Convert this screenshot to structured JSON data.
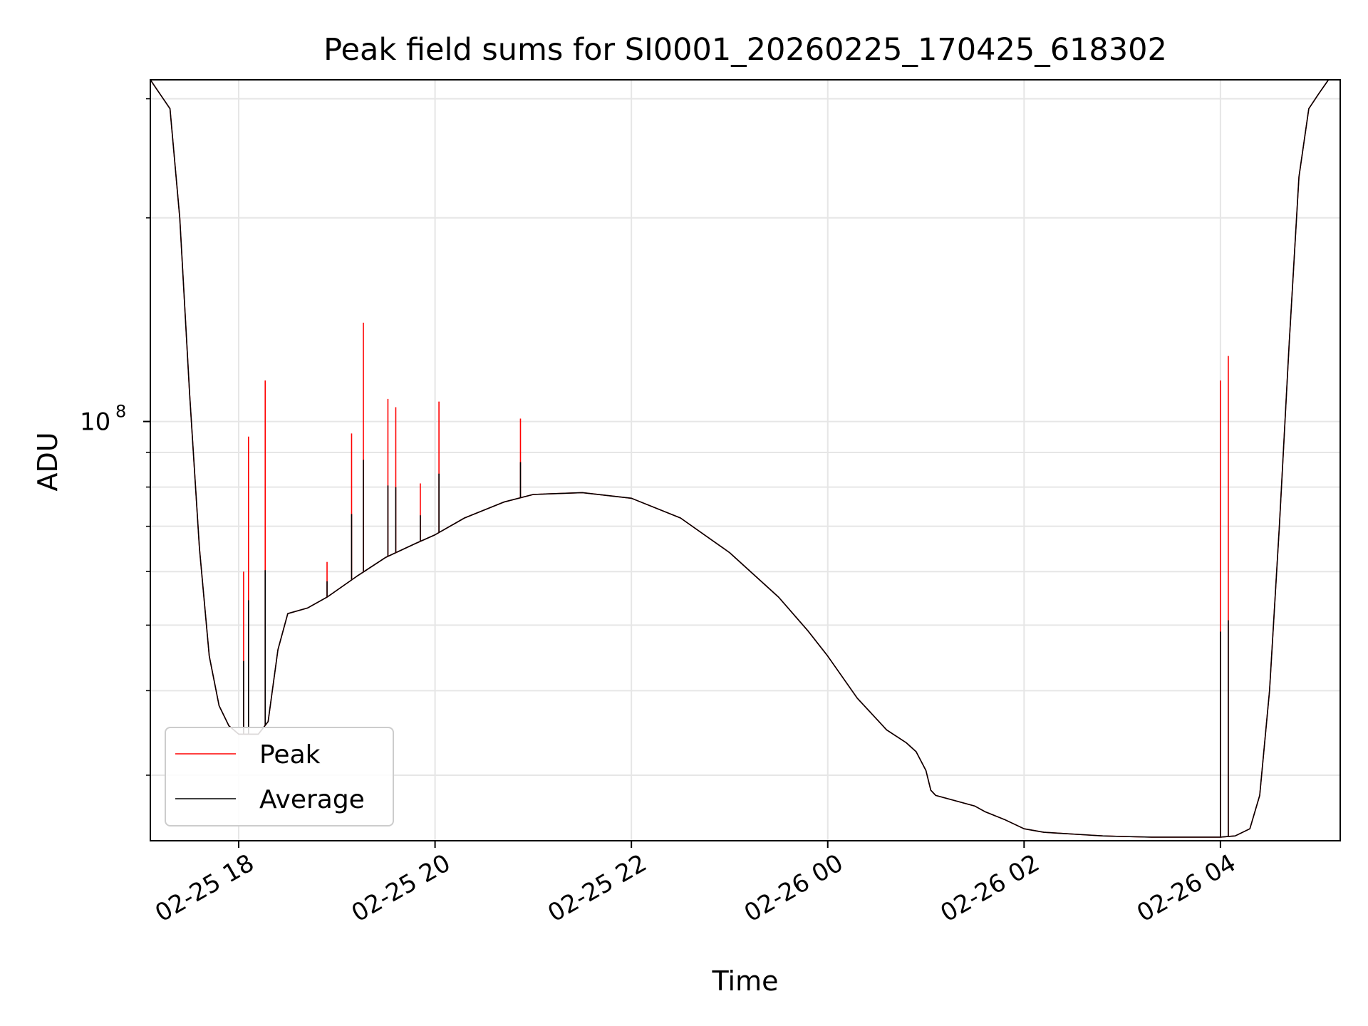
{
  "chart_data": {
    "type": "line",
    "title": "Peak field sums for SI0001_20260225_170425_618302",
    "xlabel": "Time",
    "ylabel": "ADU",
    "yscale": "log",
    "ylim": [
      24000000,
      320000000
    ],
    "xlim": [
      -0.9,
      11.22
    ],
    "grid": true,
    "legend_location": "lower-left",
    "x_unit": "hours since 02-25 18:00",
    "x_ticks": [
      {
        "value": 0,
        "label": "02-25 18"
      },
      {
        "value": 2,
        "label": "02-25 20"
      },
      {
        "value": 4,
        "label": "02-25 22"
      },
      {
        "value": 6,
        "label": "02-26 00"
      },
      {
        "value": 8,
        "label": "02-26 02"
      },
      {
        "value": 10,
        "label": "02-26 04"
      }
    ],
    "y_major_ticks": [
      {
        "value": 100000000,
        "base": "10",
        "exponent": "8"
      }
    ],
    "y_minor_ticks": [
      30000000,
      40000000,
      50000000,
      60000000,
      70000000,
      80000000,
      90000000,
      200000000,
      300000000
    ],
    "legend": [
      {
        "name": "Peak",
        "color": "#ff0000"
      },
      {
        "name": "Average",
        "color": "#000000"
      }
    ],
    "series": [
      {
        "name": "Average",
        "color": "#000000",
        "x": [
          -0.9,
          -0.7,
          -0.6,
          -0.5,
          -0.4,
          -0.3,
          -0.2,
          -0.1,
          0.0,
          0.2,
          0.3,
          0.4,
          0.5,
          0.7,
          0.9,
          1.2,
          1.5,
          1.8,
          2.0,
          2.3,
          2.7,
          3.0,
          3.5,
          4.0,
          4.5,
          5.0,
          5.5,
          5.8,
          6.0,
          6.3,
          6.6,
          6.8,
          6.9,
          7.0,
          7.05,
          7.1,
          7.3,
          7.5,
          7.6,
          7.8,
          8.0,
          8.2,
          8.4,
          8.6,
          8.8,
          9.0,
          9.3,
          9.6,
          9.9,
          10.0,
          10.15,
          10.3,
          10.4,
          10.5,
          10.6,
          10.7,
          10.8,
          10.9,
          11.0,
          11.1,
          11.22
        ],
        "y": [
          320000000,
          290000000,
          200000000,
          110000000,
          65000000,
          45000000,
          38000000,
          35500000,
          34500000,
          34500000,
          36000000,
          46000000,
          52000000,
          53000000,
          55000000,
          59000000,
          63000000,
          66000000,
          68000000,
          72000000,
          76000000,
          78000000,
          78500000,
          77000000,
          72000000,
          64000000,
          55000000,
          49000000,
          45000000,
          39000000,
          35000000,
          33500000,
          32500000,
          30500000,
          28500000,
          28000000,
          27500000,
          27000000,
          26500000,
          25800000,
          25000000,
          24700000,
          24600000,
          24500000,
          24400000,
          24350000,
          24300000,
          24300000,
          24300000,
          24300000,
          24400000,
          25000000,
          28000000,
          40000000,
          70000000,
          130000000,
          230000000,
          290000000,
          305000000,
          320000000,
          320000000
        ]
      },
      {
        "name": "Peak",
        "color": "#ff0000",
        "x": [
          -0.9,
          -0.7,
          -0.6,
          -0.5,
          -0.4,
          -0.3,
          -0.2,
          -0.1,
          0.0,
          0.2,
          0.3,
          0.4,
          0.5,
          0.7,
          0.9,
          1.2,
          1.5,
          1.8,
          2.0,
          2.3,
          2.7,
          3.0,
          3.5,
          4.0,
          4.5,
          5.0,
          5.5,
          5.8,
          6.0,
          6.3,
          6.6,
          6.8,
          6.9,
          7.0,
          7.05,
          7.1,
          7.3,
          7.5,
          7.6,
          7.8,
          8.0,
          8.2,
          8.4,
          8.6,
          8.8,
          9.0,
          9.3,
          9.6,
          9.9,
          10.0,
          10.15,
          10.3,
          10.4,
          10.5,
          10.6,
          10.7,
          10.8,
          10.9,
          11.0,
          11.1,
          11.22
        ],
        "y": [
          320000000,
          290000000,
          200000000,
          110000000,
          65000000,
          45000000,
          38000000,
          35500000,
          34500000,
          34500000,
          36000000,
          46000000,
          52000000,
          53000000,
          55000000,
          59000000,
          63000000,
          66000000,
          68000000,
          72000000,
          76000000,
          78000000,
          78500000,
          77000000,
          72000000,
          64000000,
          55000000,
          49000000,
          45000000,
          39000000,
          35000000,
          33500000,
          32500000,
          30500000,
          28500000,
          28000000,
          27500000,
          27000000,
          26500000,
          25800000,
          25000000,
          24700000,
          24600000,
          24500000,
          24400000,
          24350000,
          24300000,
          24300000,
          24300000,
          24300000,
          24400000,
          25000000,
          28000000,
          40000000,
          70000000,
          130000000,
          230000000,
          290000000,
          305000000,
          320000000,
          320000000
        ],
        "spikes": [
          {
            "x": 0.05,
            "y": 60000000
          },
          {
            "x": 0.1,
            "y": 95000000
          },
          {
            "x": 0.27,
            "y": 115000000
          },
          {
            "x": 0.9,
            "y": 62000000
          },
          {
            "x": 1.15,
            "y": 96000000
          },
          {
            "x": 1.27,
            "y": 140000000
          },
          {
            "x": 1.52,
            "y": 108000000
          },
          {
            "x": 1.6,
            "y": 105000000
          },
          {
            "x": 1.85,
            "y": 81000000
          },
          {
            "x": 2.04,
            "y": 107000000
          },
          {
            "x": 2.87,
            "y": 101000000
          },
          {
            "x": 10.0,
            "y": 115000000
          },
          {
            "x": 10.08,
            "y": 125000000
          }
        ]
      }
    ]
  }
}
